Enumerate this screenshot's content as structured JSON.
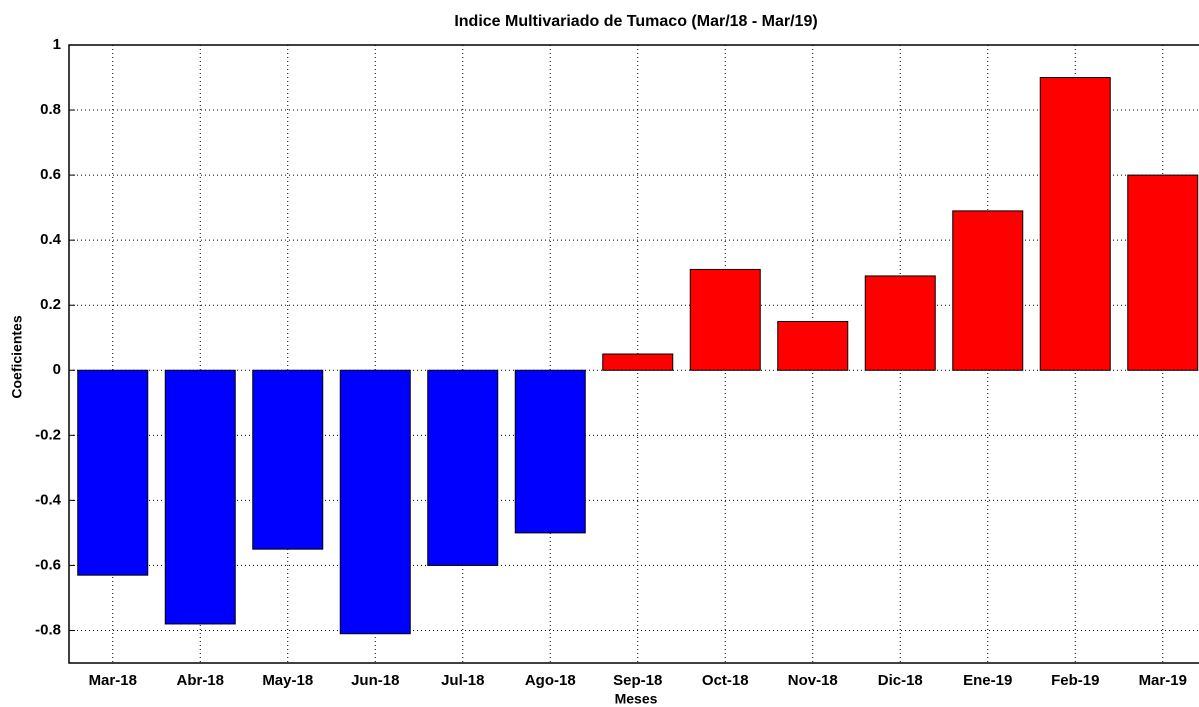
{
  "chart_data": {
    "type": "bar",
    "title": "Indice Multivariado de Tumaco (Mar/18 - Mar/19)",
    "x_label": "Meses",
    "y_label": "Coeficientes",
    "categories": [
      "Mar-18",
      "Abr-18",
      "May-18",
      "Jun-18",
      "Jul-18",
      "Ago-18",
      "Sep-18",
      "Oct-18",
      "Nov-18",
      "Dic-18",
      "Ene-19",
      "Feb-19",
      "Mar-19"
    ],
    "values": [
      -0.63,
      -0.78,
      -0.55,
      -0.81,
      -0.6,
      -0.5,
      0.05,
      0.31,
      0.15,
      0.29,
      0.49,
      0.9,
      0.6
    ],
    "negative_color": "#0000ff",
    "positive_color": "#ff0000",
    "ylim": [
      -0.9,
      1
    ],
    "yticks": [
      -0.8,
      -0.6,
      -0.4,
      -0.2,
      0,
      0.2,
      0.4,
      0.6,
      0.8,
      1
    ],
    "grid": true
  }
}
